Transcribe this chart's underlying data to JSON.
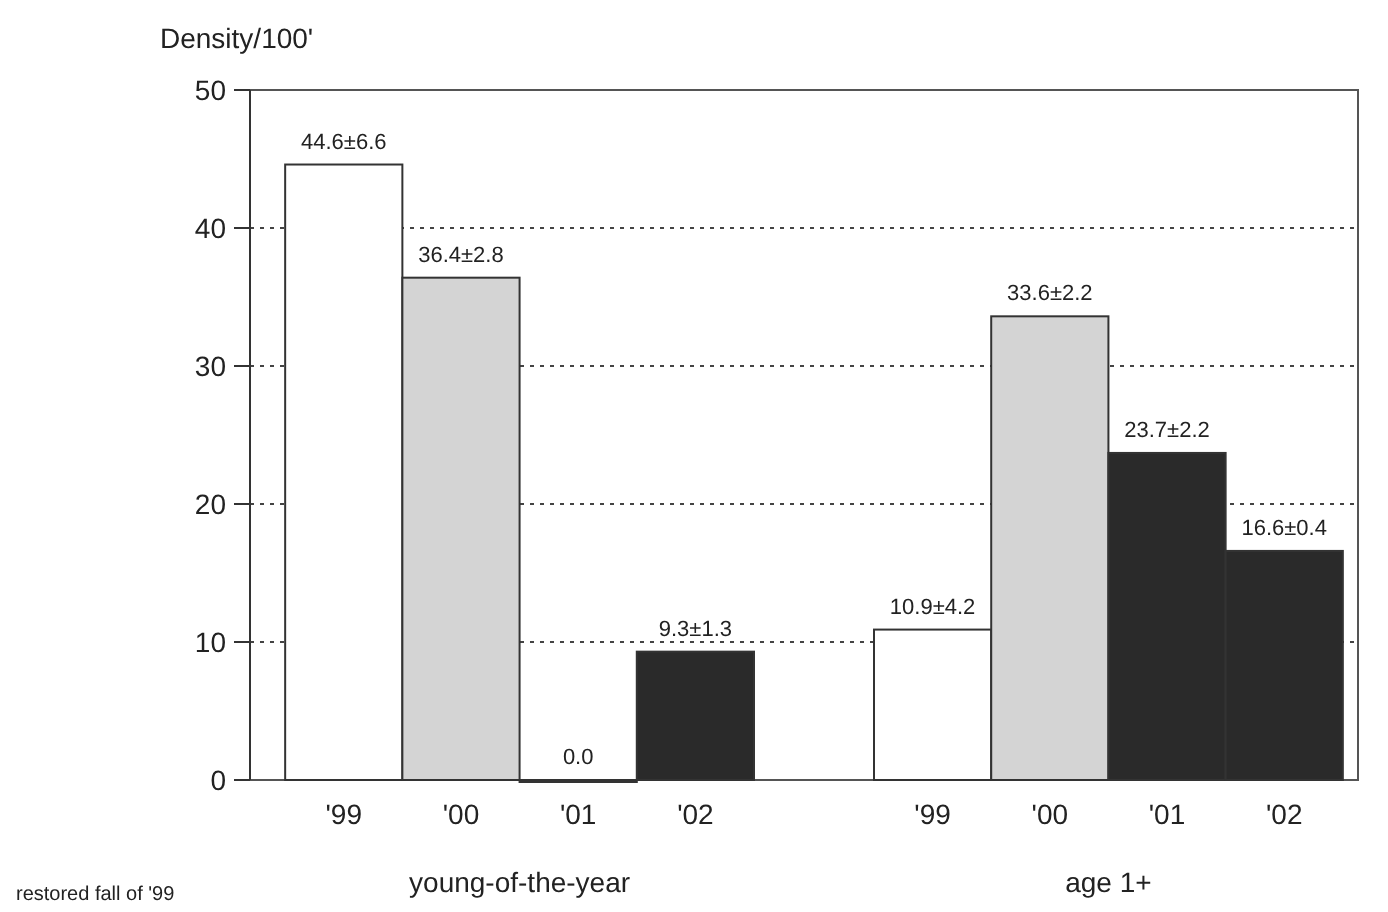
{
  "chart_data": {
    "type": "bar",
    "ylabel": "Density/100'",
    "categories": [
      "'99",
      "'00",
      "'01",
      "'02",
      "'99",
      "'00",
      "'01",
      "'02"
    ],
    "values": [
      44.6,
      36.4,
      0.0,
      9.3,
      10.9,
      33.6,
      23.7,
      16.6
    ],
    "colors": [
      "#ffffff",
      "#d4d4d4",
      "#2a2a2a",
      "#2a2a2a",
      "#ffffff",
      "#d4d4d4",
      "#2a2a2a",
      "#2a2a2a"
    ],
    "value_labels": [
      "44.6±6.6",
      "36.4±2.8",
      "0.0",
      "9.3±1.3",
      "10.9±4.2",
      "33.6±2.2",
      "23.7±2.2",
      "16.6±0.4"
    ],
    "ylim": [
      0,
      50
    ],
    "yticks": [
      0,
      10,
      20,
      30,
      40,
      50
    ],
    "grid": "y",
    "annotations": [
      "young-of-the-year",
      "age 1+",
      "restored fall of '99"
    ]
  }
}
